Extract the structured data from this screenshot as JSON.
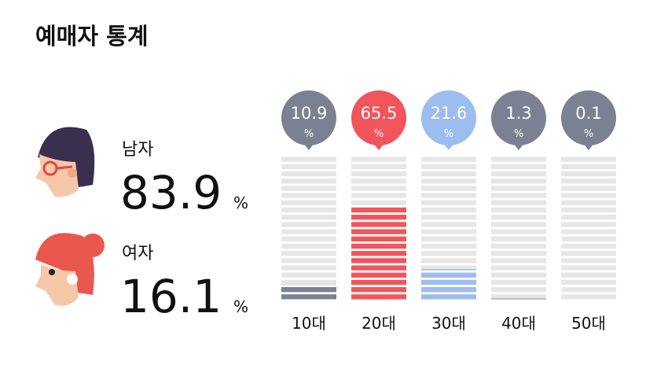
{
  "title": "예매자 통계",
  "gender": [
    {
      "label": "남자",
      "value": 83.9,
      "unit": "%"
    },
    {
      "label": "여자",
      "value": 16.1,
      "unit": "%"
    }
  ],
  "chart_data": {
    "type": "bar",
    "categories": [
      "10대",
      "20대",
      "30대",
      "40대",
      "50대"
    ],
    "values": [
      10.9,
      65.5,
      21.6,
      1.3,
      0.1
    ],
    "unit": "%",
    "colors": [
      "#7b8092",
      "#f2545b",
      "#9dbdf0",
      "#7b8092",
      "#7b8092"
    ],
    "ylim": [
      0,
      100
    ]
  }
}
